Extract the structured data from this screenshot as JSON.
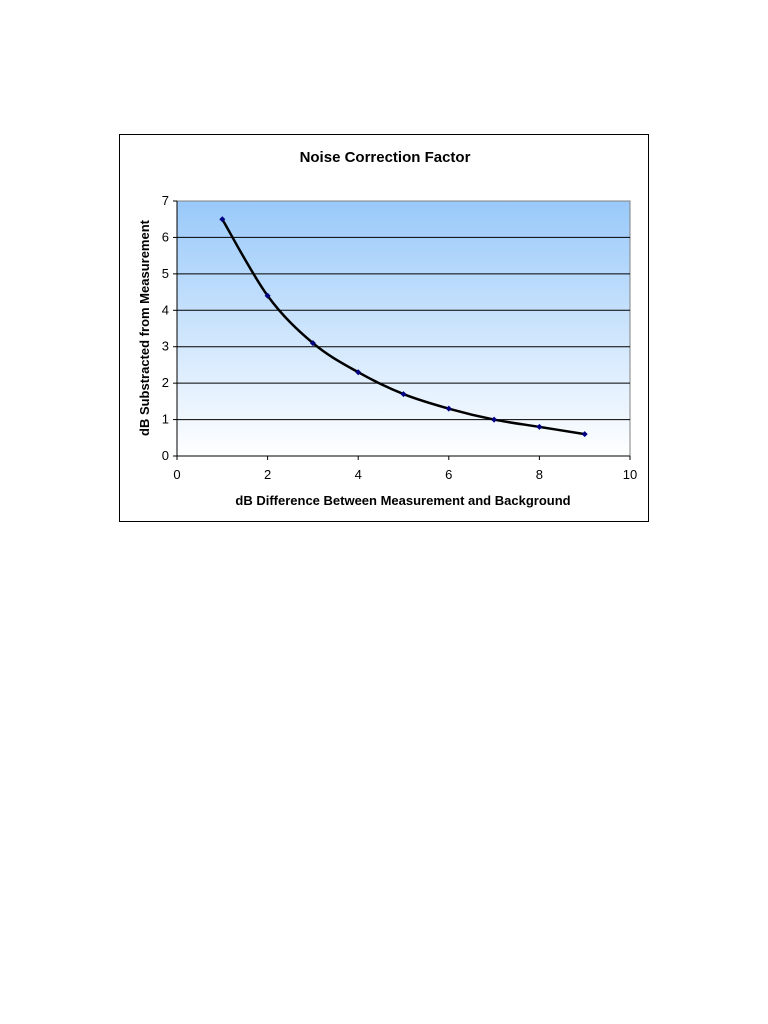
{
  "chart_data": {
    "type": "line",
    "title": "Noise Correction Factor",
    "xlabel": "dB Difference Between Measurement and Background",
    "ylabel": "dB Substracted from Measurement",
    "xlim": [
      0,
      10
    ],
    "ylim": [
      0,
      7
    ],
    "xticks": [
      0,
      2,
      4,
      6,
      8,
      10
    ],
    "yticks": [
      0,
      1,
      2,
      3,
      4,
      5,
      6,
      7
    ],
    "grid": "horizontal",
    "legend": "none",
    "background_gradient": [
      "#99c9fa",
      "#ffffff"
    ],
    "line_color": "#000000",
    "marker_color": "#000080",
    "series": [
      {
        "x": [
          1,
          2,
          3,
          4,
          5,
          6,
          7,
          8,
          9
        ],
        "y": [
          6.5,
          4.4,
          3.1,
          2.3,
          1.7,
          1.3,
          1.0,
          0.8,
          0.6
        ]
      }
    ]
  }
}
